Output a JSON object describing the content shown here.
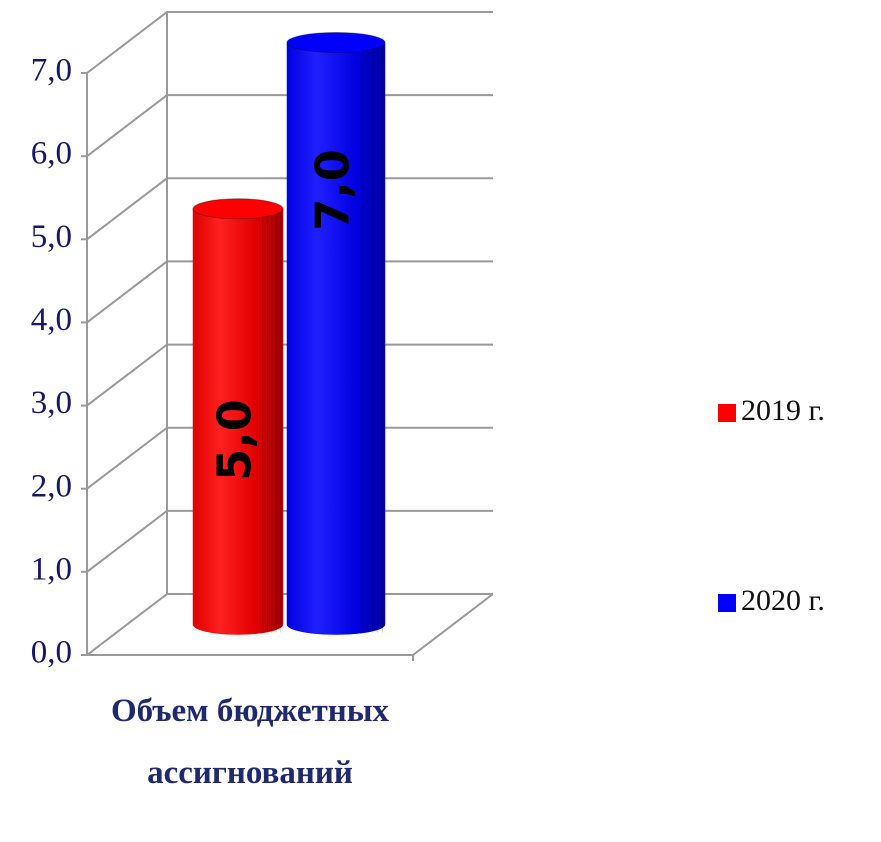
{
  "chart_data": {
    "type": "bar3d",
    "categories": [
      "Объем бюджетных ассигнований"
    ],
    "series": [
      {
        "name": "2019 г.",
        "color": "#ff0000",
        "values": [
          5.0
        ],
        "value_labels": [
          "5,0"
        ]
      },
      {
        "name": "2020 г.",
        "color": "#0000ff",
        "values": [
          7.0
        ],
        "value_labels": [
          "7,0"
        ]
      }
    ],
    "ylim": [
      0,
      7
    ],
    "yticks": [
      {
        "value": 0,
        "label": "0,0"
      },
      {
        "value": 1,
        "label": "1,0"
      },
      {
        "value": 2,
        "label": "2,0"
      },
      {
        "value": 3,
        "label": "3,0"
      },
      {
        "value": 4,
        "label": "4,0"
      },
      {
        "value": 5,
        "label": "5,0"
      },
      {
        "value": 6,
        "label": "6,0"
      },
      {
        "value": 7,
        "label": "7,0"
      }
    ],
    "grid": true,
    "legend": "right"
  }
}
